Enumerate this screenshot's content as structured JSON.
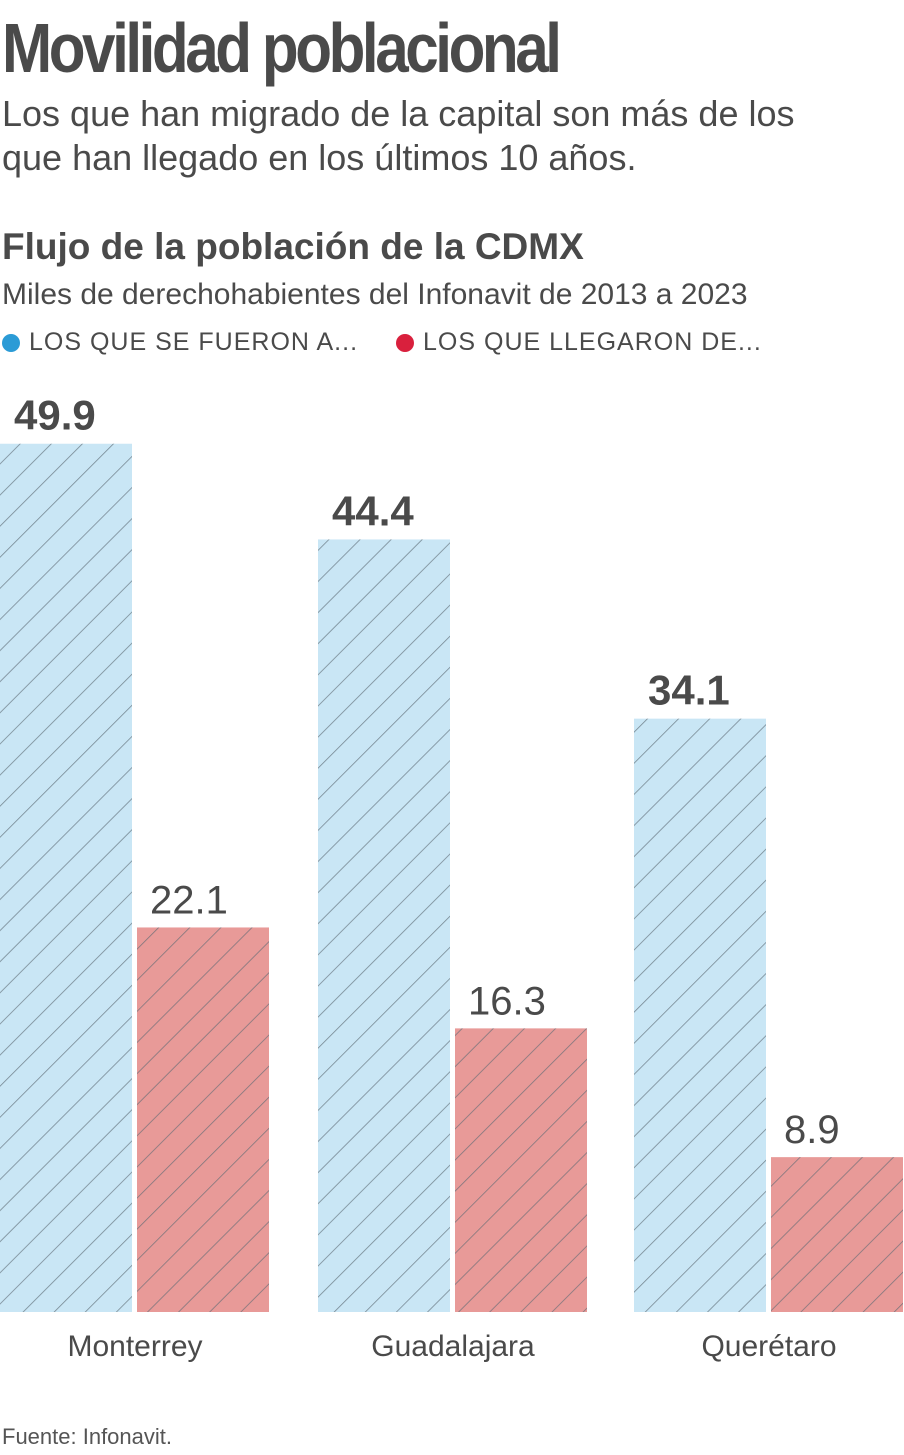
{
  "headline": "Movilidad poblacional",
  "subheadline": "Los que han migrado de la capital son más de los que han llegado en los últimos 10 años.",
  "source": "Fuente: Infonavit.",
  "colors": {
    "left_fill": "#c9e6f5",
    "left_dot": "#2b9bd6",
    "arrived_fill": "#e89a98",
    "arrived_dot": "#d9203d",
    "hatch": "#5c6a73"
  },
  "chart_data": {
    "type": "bar",
    "title": "Flujo de la población de la CDMX",
    "subtitle": "Miles de derechohabientes del Infonavit de 2013 a 2023",
    "categories": [
      "Monterrey",
      "Guadalajara",
      "Querétaro"
    ],
    "series": [
      {
        "name": "LOS QUE SE FUERON A...",
        "values": [
          49.9,
          44.4,
          34.1
        ]
      },
      {
        "name": "LOS QUE LLEGARON DE...",
        "values": [
          22.1,
          16.3,
          8.9
        ]
      }
    ],
    "value_labels": [
      [
        "49.9",
        "44.4",
        "34.1"
      ],
      [
        "22.1",
        "16.3",
        "8.9"
      ]
    ],
    "xlabel": "",
    "ylabel": "",
    "ylim": [
      0,
      50
    ],
    "grid": false,
    "legend": "top-left"
  }
}
